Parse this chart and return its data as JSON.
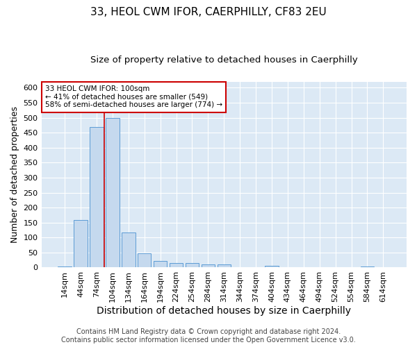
{
  "title1": "33, HEOL CWM IFOR, CAERPHILLY, CF83 2EU",
  "title2": "Size of property relative to detached houses in Caerphilly",
  "xlabel": "Distribution of detached houses by size in Caerphilly",
  "ylabel": "Number of detached properties",
  "categories": [
    "14sqm",
    "44sqm",
    "74sqm",
    "104sqm",
    "134sqm",
    "164sqm",
    "194sqm",
    "224sqm",
    "254sqm",
    "284sqm",
    "314sqm",
    "344sqm",
    "374sqm",
    "404sqm",
    "434sqm",
    "464sqm",
    "494sqm",
    "524sqm",
    "554sqm",
    "584sqm",
    "614sqm"
  ],
  "values": [
    4,
    158,
    470,
    500,
    118,
    47,
    22,
    15,
    14,
    10,
    10,
    0,
    0,
    5,
    0,
    0,
    0,
    0,
    0,
    3,
    0
  ],
  "bar_color": "#c5d9ee",
  "bar_edge_color": "#5b9bd5",
  "vline_x_index": 3,
  "vline_color": "#cc0000",
  "annotation_line1": "33 HEOL CWM IFOR: 100sqm",
  "annotation_line2": "← 41% of detached houses are smaller (549)",
  "annotation_line3": "58% of semi-detached houses are larger (774) →",
  "annotation_box_edge": "#cc0000",
  "ylim": [
    0,
    620
  ],
  "yticks": [
    0,
    50,
    100,
    150,
    200,
    250,
    300,
    350,
    400,
    450,
    500,
    550,
    600
  ],
  "footer_text": "Contains HM Land Registry data © Crown copyright and database right 2024.\nContains public sector information licensed under the Open Government Licence v3.0.",
  "fig_bg_color": "#ffffff",
  "plot_bg_color": "#dce9f5",
  "title1_fontsize": 11,
  "title2_fontsize": 9.5,
  "xlabel_fontsize": 10,
  "ylabel_fontsize": 9,
  "tick_fontsize": 8,
  "footer_fontsize": 7
}
